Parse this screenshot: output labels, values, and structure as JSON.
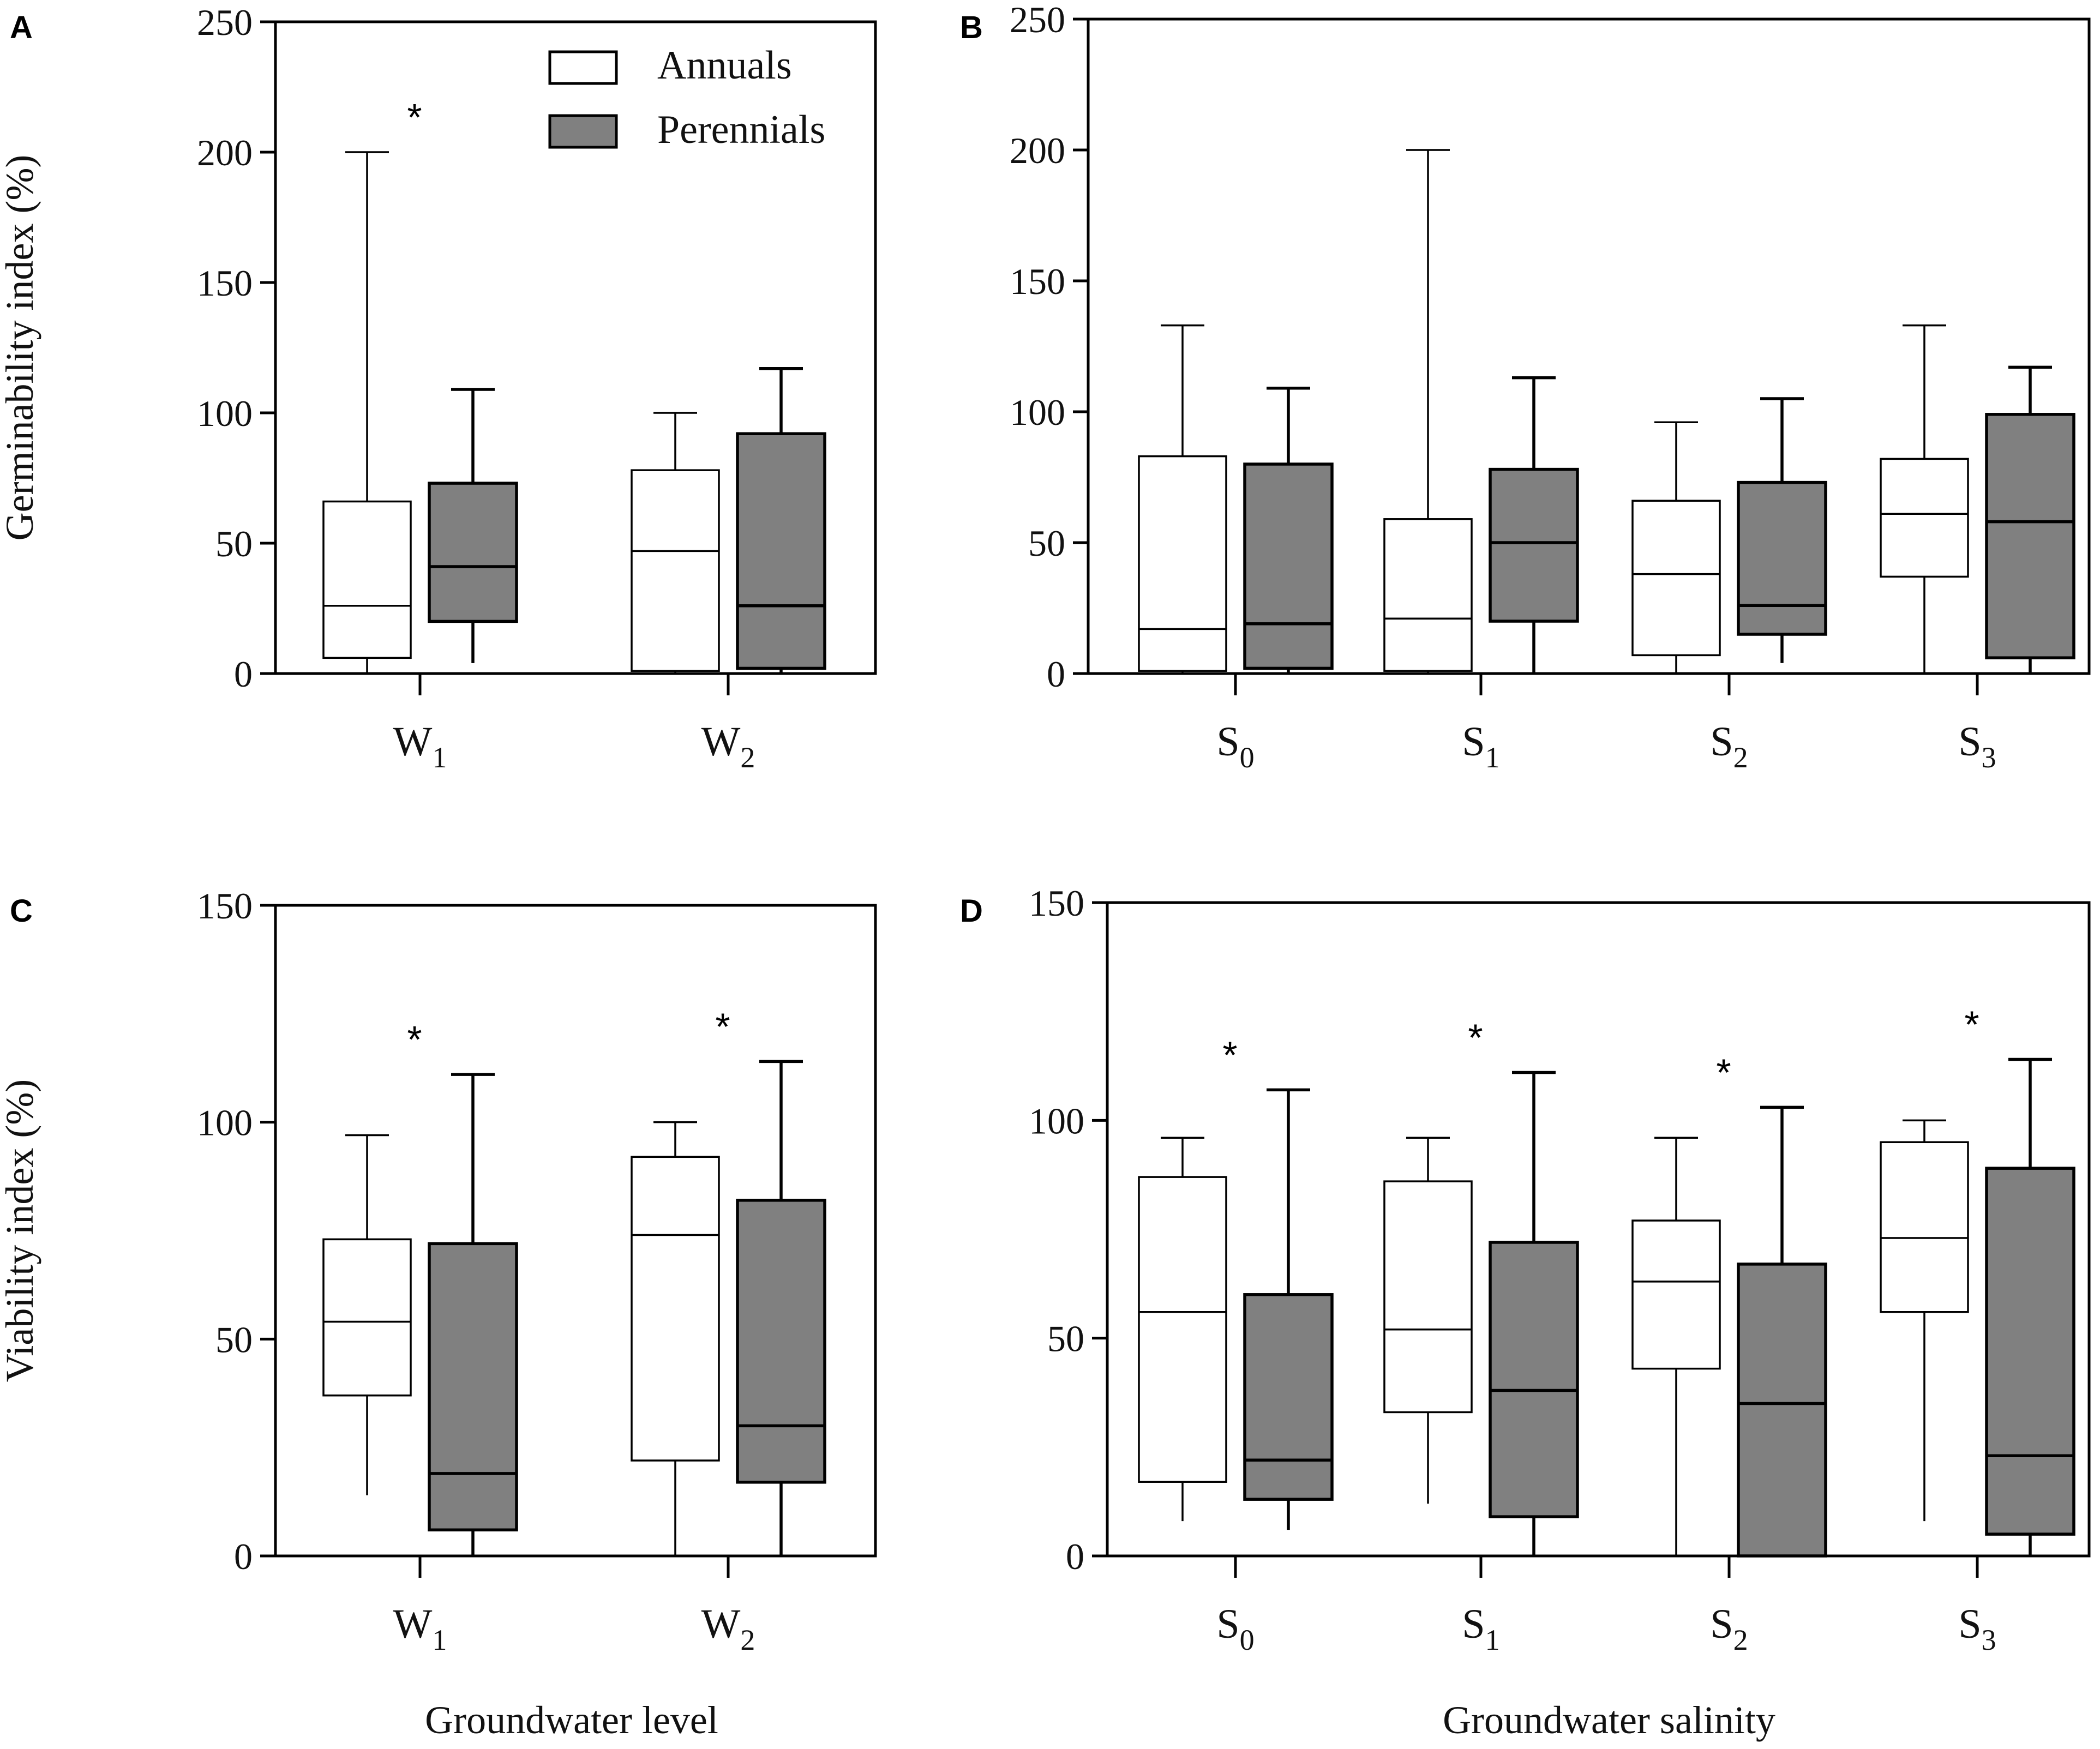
{
  "legend": {
    "annuals_label": "Annuals",
    "perennials_label": "Perennials",
    "annuals_color": "#ffffff",
    "perennials_color": "#808080"
  },
  "x_titles": {
    "left": "Groundwater level",
    "right": "Groundwater salinity"
  },
  "chart_data": [
    {
      "panel": "A",
      "type": "box",
      "ylabel": "Germinability index (%)",
      "ylim": [
        0,
        250
      ],
      "yticks": [
        0,
        50,
        100,
        150,
        200,
        250
      ],
      "legend_position": "top-right",
      "categories": [
        {
          "base": "W",
          "sub": "1",
          "significant": true,
          "annuals": {
            "min": 0,
            "q1": 6,
            "median": 26,
            "q3": 66,
            "max": 200
          },
          "perennials": {
            "min": 4,
            "q1": 20,
            "median": 41,
            "q3": 73,
            "max": 109
          }
        },
        {
          "base": "W",
          "sub": "2",
          "significant": false,
          "annuals": {
            "min": 0,
            "q1": 1,
            "median": 47,
            "q3": 78,
            "max": 100
          },
          "perennials": {
            "min": 0,
            "q1": 2,
            "median": 26,
            "q3": 92,
            "max": 117
          }
        }
      ]
    },
    {
      "panel": "B",
      "type": "box",
      "ylabel": "",
      "ylim": [
        0,
        250
      ],
      "yticks": [
        0,
        50,
        100,
        150,
        200,
        250
      ],
      "categories": [
        {
          "base": "S",
          "sub": "0",
          "significant": false,
          "annuals": {
            "min": 0,
            "q1": 1,
            "median": 17,
            "q3": 83,
            "max": 133
          },
          "perennials": {
            "min": 0,
            "q1": 2,
            "median": 19,
            "q3": 80,
            "max": 109
          }
        },
        {
          "base": "S",
          "sub": "1",
          "significant": false,
          "annuals": {
            "min": 0,
            "q1": 1,
            "median": 21,
            "q3": 59,
            "max": 200
          },
          "perennials": {
            "min": 0,
            "q1": 20,
            "median": 50,
            "q3": 78,
            "max": 113
          }
        },
        {
          "base": "S",
          "sub": "2",
          "significant": false,
          "annuals": {
            "min": 0,
            "q1": 7,
            "median": 38,
            "q3": 66,
            "max": 96
          },
          "perennials": {
            "min": 4,
            "q1": 15,
            "median": 26,
            "q3": 73,
            "max": 105
          }
        },
        {
          "base": "S",
          "sub": "3",
          "significant": false,
          "annuals": {
            "min": 0,
            "q1": 37,
            "median": 61,
            "q3": 82,
            "max": 133
          },
          "perennials": {
            "min": 0,
            "q1": 6,
            "median": 58,
            "q3": 99,
            "max": 117
          }
        }
      ]
    },
    {
      "panel": "C",
      "type": "box",
      "ylabel": "Viability index (%)",
      "ylim": [
        0,
        150
      ],
      "yticks": [
        0,
        50,
        100,
        150
      ],
      "categories": [
        {
          "base": "W",
          "sub": "1",
          "significant": true,
          "annuals": {
            "min": 14,
            "q1": 37,
            "median": 54,
            "q3": 73,
            "max": 97
          },
          "perennials": {
            "min": 0,
            "q1": 6,
            "median": 19,
            "q3": 72,
            "max": 111
          }
        },
        {
          "base": "W",
          "sub": "2",
          "significant": true,
          "annuals": {
            "min": 0,
            "q1": 22,
            "median": 74,
            "q3": 92,
            "max": 100
          },
          "perennials": {
            "min": 0,
            "q1": 17,
            "median": 30,
            "q3": 82,
            "max": 114
          }
        }
      ]
    },
    {
      "panel": "D",
      "type": "box",
      "ylabel": "",
      "ylim": [
        0,
        150
      ],
      "yticks": [
        0,
        50,
        100,
        150
      ],
      "categories": [
        {
          "base": "S",
          "sub": "0",
          "significant": true,
          "annuals": {
            "min": 8,
            "q1": 17,
            "median": 56,
            "q3": 87,
            "max": 96
          },
          "perennials": {
            "min": 6,
            "q1": 13,
            "median": 22,
            "q3": 60,
            "max": 107
          }
        },
        {
          "base": "S",
          "sub": "1",
          "significant": true,
          "annuals": {
            "min": 12,
            "q1": 33,
            "median": 52,
            "q3": 86,
            "max": 96
          },
          "perennials": {
            "min": 0,
            "q1": 9,
            "median": 38,
            "q3": 72,
            "max": 111
          }
        },
        {
          "base": "S",
          "sub": "2",
          "significant": true,
          "annuals": {
            "min": 0,
            "q1": 43,
            "median": 63,
            "q3": 77,
            "max": 96
          },
          "perennials": {
            "min": 0,
            "q1": 0,
            "median": 35,
            "q3": 67,
            "max": 103
          }
        },
        {
          "base": "S",
          "sub": "3",
          "significant": true,
          "annuals": {
            "min": 8,
            "q1": 56,
            "median": 73,
            "q3": 95,
            "max": 100
          },
          "perennials": {
            "min": 0,
            "q1": 5,
            "median": 23,
            "q3": 89,
            "max": 114
          }
        }
      ]
    }
  ]
}
